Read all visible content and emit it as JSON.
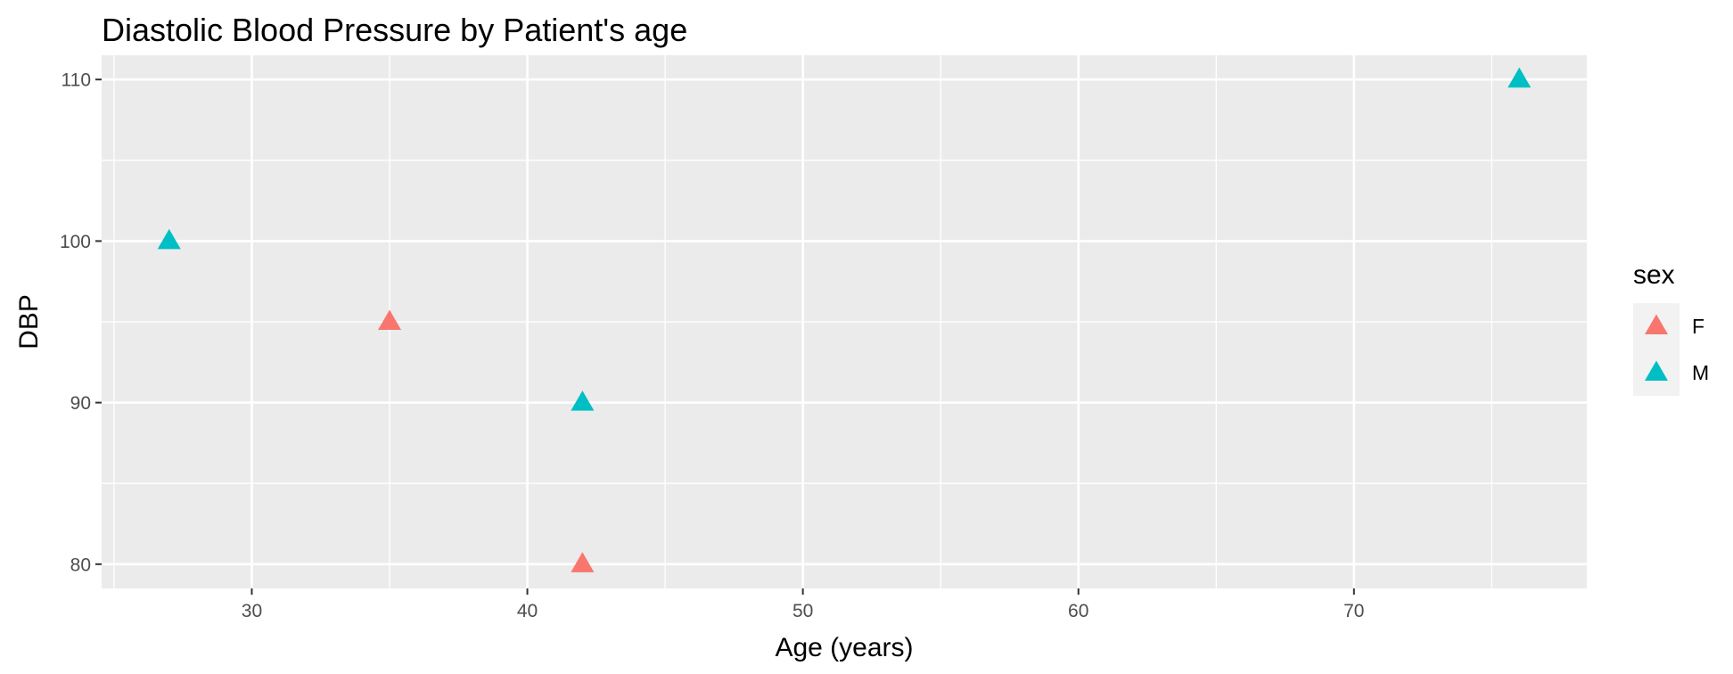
{
  "chart_data": {
    "type": "scatter",
    "title": "Diastolic Blood Pressure by Patient's age",
    "xlabel": "Age (years)",
    "ylabel": "DBP",
    "xlim": [
      24.55,
      78.45
    ],
    "ylim": [
      78.5,
      111.5
    ],
    "x_ticks": [
      30,
      40,
      50,
      60,
      70
    ],
    "y_ticks": [
      80,
      90,
      100,
      110
    ],
    "x_tick_labels": [
      "30",
      "40",
      "50",
      "60",
      "70"
    ],
    "y_tick_labels": [
      "80",
      "90",
      "100",
      "110"
    ],
    "grid": true,
    "legend": {
      "title": "sex",
      "position": "right"
    },
    "marker": "triangle",
    "series": [
      {
        "name": "F",
        "color": "#F8766D",
        "points": [
          {
            "x": 35,
            "y": 95
          },
          {
            "x": 42,
            "y": 80
          }
        ]
      },
      {
        "name": "M",
        "color": "#00BFC4",
        "points": [
          {
            "x": 27,
            "y": 100
          },
          {
            "x": 42,
            "y": 90
          },
          {
            "x": 76,
            "y": 110
          }
        ]
      }
    ]
  }
}
